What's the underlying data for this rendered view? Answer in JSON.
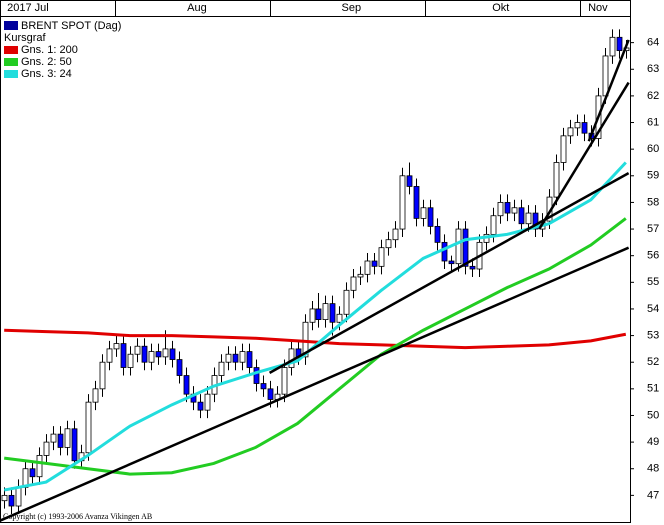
{
  "chart_data": {
    "type": "candlestick",
    "title": "BRENT SPOT (Dag)",
    "subtitle": "Kursgraf",
    "color": "#0000ff",
    "title_color": "#00009c",
    "annotation": "Copyright (c) 1993-2006 Avanza Vikingen AB",
    "xlim": [
      -0.6,
      89.6
    ],
    "xticks": [
      {
        "value": 3.4,
        "label": "2017 Jul"
      },
      {
        "value": 27.6,
        "label": "Aug"
      },
      {
        "value": 49.7,
        "label": "Sep"
      },
      {
        "value": 71.1,
        "label": "Okt"
      },
      {
        "value": 85,
        "label": "Nov"
      }
    ],
    "ylim": [
      46,
      65
    ],
    "yticks": [
      47,
      48,
      49,
      50,
      51,
      52,
      53,
      54,
      55,
      56,
      57,
      58,
      59,
      60,
      61,
      62,
      63,
      64
    ],
    "ohlc": [
      [
        46.8,
        47.3,
        46.5,
        47.0
      ],
      [
        47.0,
        47.3,
        46.3,
        46.6
      ],
      [
        46.6,
        47.6,
        46.3,
        47.3
      ],
      [
        47.3,
        48.3,
        47.0,
        48.0
      ],
      [
        48.0,
        48.3,
        47.4,
        47.7
      ],
      [
        47.7,
        48.8,
        47.4,
        48.5
      ],
      [
        48.5,
        49.3,
        48.2,
        49.0
      ],
      [
        49.0,
        49.6,
        48.7,
        49.3
      ],
      [
        49.3,
        49.6,
        48.5,
        48.8
      ],
      [
        48.8,
        49.8,
        48.5,
        49.5
      ],
      [
        49.5,
        49.8,
        48.0,
        48.3
      ],
      [
        48.3,
        48.9,
        48.0,
        48.6
      ],
      [
        48.6,
        50.8,
        48.3,
        50.5
      ],
      [
        50.5,
        51.3,
        50.2,
        51.0
      ],
      [
        51.0,
        52.3,
        50.7,
        52.0
      ],
      [
        52.0,
        52.8,
        51.7,
        52.5
      ],
      [
        52.5,
        53.0,
        52.2,
        52.7
      ],
      [
        52.7,
        53.0,
        51.5,
        51.8
      ],
      [
        51.8,
        52.6,
        51.5,
        52.3
      ],
      [
        52.3,
        52.9,
        52.0,
        52.6
      ],
      [
        52.6,
        52.9,
        51.7,
        52.0
      ],
      [
        52.0,
        52.7,
        51.7,
        52.4
      ],
      [
        52.4,
        52.7,
        51.9,
        52.2
      ],
      [
        52.2,
        53.2,
        51.9,
        52.5
      ],
      [
        52.5,
        52.8,
        51.8,
        52.1
      ],
      [
        52.1,
        52.4,
        51.2,
        51.5
      ],
      [
        51.5,
        51.8,
        50.5,
        50.8
      ],
      [
        50.8,
        51.1,
        50.2,
        50.5
      ],
      [
        50.5,
        50.8,
        49.9,
        50.2
      ],
      [
        50.2,
        51.1,
        49.9,
        50.8
      ],
      [
        50.8,
        51.8,
        50.5,
        51.5
      ],
      [
        51.5,
        52.3,
        51.2,
        52.0
      ],
      [
        52.0,
        52.6,
        51.7,
        52.3
      ],
      [
        52.3,
        52.6,
        51.7,
        52.0
      ],
      [
        52.0,
        52.7,
        51.7,
        52.4
      ],
      [
        52.4,
        52.7,
        51.5,
        51.8
      ],
      [
        51.8,
        52.1,
        50.9,
        51.2
      ],
      [
        51.2,
        51.5,
        50.7,
        51.0
      ],
      [
        51.0,
        51.3,
        50.3,
        50.6
      ],
      [
        50.6,
        51.1,
        50.3,
        50.8
      ],
      [
        50.8,
        52.1,
        50.5,
        51.8
      ],
      [
        51.8,
        52.8,
        51.5,
        52.5
      ],
      [
        52.5,
        52.8,
        51.9,
        52.2
      ],
      [
        52.2,
        53.8,
        51.9,
        53.5
      ],
      [
        53.5,
        54.3,
        53.2,
        54.0
      ],
      [
        54.0,
        54.6,
        53.3,
        53.6
      ],
      [
        53.6,
        54.5,
        53.3,
        54.2
      ],
      [
        54.2,
        54.5,
        53.0,
        53.5
      ],
      [
        53.5,
        54.1,
        53.2,
        53.8
      ],
      [
        53.8,
        55.0,
        53.5,
        54.7
      ],
      [
        54.7,
        55.5,
        54.4,
        55.2
      ],
      [
        55.2,
        55.6,
        54.9,
        55.3
      ],
      [
        55.3,
        56.1,
        55.0,
        55.8
      ],
      [
        55.8,
        56.1,
        55.3,
        55.6
      ],
      [
        55.6,
        56.6,
        55.3,
        56.3
      ],
      [
        56.3,
        56.9,
        56.0,
        56.6
      ],
      [
        56.6,
        57.3,
        56.3,
        57.0
      ],
      [
        57.0,
        59.3,
        56.7,
        59.0
      ],
      [
        59.0,
        59.5,
        58.3,
        58.6
      ],
      [
        58.6,
        58.9,
        57.1,
        57.4
      ],
      [
        57.4,
        58.1,
        57.1,
        57.8
      ],
      [
        57.8,
        58.1,
        56.8,
        57.1
      ],
      [
        57.1,
        57.4,
        56.2,
        56.5
      ],
      [
        56.5,
        56.8,
        55.5,
        55.8
      ],
      [
        55.8,
        56.0,
        55.4,
        55.7
      ],
      [
        55.7,
        57.3,
        55.4,
        57.0
      ],
      [
        57.0,
        57.3,
        55.3,
        55.6
      ],
      [
        55.6,
        55.9,
        55.2,
        55.5
      ],
      [
        55.5,
        56.8,
        55.2,
        56.5
      ],
      [
        56.5,
        57.1,
        56.2,
        56.8
      ],
      [
        56.8,
        57.8,
        56.5,
        57.5
      ],
      [
        57.5,
        58.3,
        57.2,
        58.0
      ],
      [
        58.0,
        58.3,
        57.3,
        57.6
      ],
      [
        57.6,
        58.1,
        57.3,
        57.8
      ],
      [
        57.8,
        58.1,
        56.9,
        57.2
      ],
      [
        57.2,
        57.9,
        56.9,
        57.6
      ],
      [
        57.6,
        57.9,
        56.7,
        57.0
      ],
      [
        57.0,
        57.6,
        56.7,
        57.3
      ],
      [
        57.3,
        58.5,
        57.0,
        58.2
      ],
      [
        58.2,
        59.8,
        57.9,
        59.5
      ],
      [
        59.5,
        60.8,
        59.2,
        60.5
      ],
      [
        60.5,
        61.1,
        60.2,
        60.8
      ],
      [
        60.8,
        61.3,
        60.5,
        61.0
      ],
      [
        61.0,
        61.3,
        60.3,
        60.6
      ],
      [
        60.6,
        60.9,
        60.1,
        60.4
      ],
      [
        60.4,
        62.3,
        60.1,
        62.0
      ],
      [
        62.0,
        63.8,
        61.7,
        63.5
      ],
      [
        63.5,
        64.5,
        63.2,
        64.2
      ],
      [
        64.2,
        64.5,
        63.4,
        63.7
      ],
      [
        63.7,
        64.1,
        63.4,
        63.8
      ]
    ],
    "series": [
      {
        "name": "Gns. 1: 200",
        "color": "#e00000",
        "x": [
          0,
          6,
          12,
          18,
          24,
          30,
          36,
          42,
          48,
          54,
          60,
          66,
          72,
          78,
          84,
          89
        ],
        "values": [
          53.2,
          53.15,
          53.1,
          53.0,
          53.0,
          52.95,
          52.9,
          52.8,
          52.7,
          52.65,
          52.6,
          52.55,
          52.6,
          52.65,
          52.8,
          53.05
        ]
      },
      {
        "name": "Gns. 2: 50",
        "color": "#22cc22",
        "x": [
          0,
          6,
          12,
          18,
          24,
          30,
          36,
          42,
          48,
          54,
          60,
          66,
          72,
          78,
          84,
          89
        ],
        "values": [
          48.4,
          48.2,
          48.0,
          47.8,
          47.85,
          48.2,
          48.8,
          49.7,
          51.0,
          52.3,
          53.2,
          54.0,
          54.8,
          55.5,
          56.4,
          57.4
        ]
      },
      {
        "name": "Gns. 3: 24",
        "color": "#22dddd",
        "x": [
          0,
          6,
          12,
          18,
          24,
          30,
          36,
          42,
          48,
          54,
          60,
          66,
          72,
          78,
          84,
          89
        ],
        "values": [
          47.2,
          47.5,
          48.5,
          49.6,
          50.4,
          51.1,
          51.6,
          52.05,
          53.4,
          54.7,
          55.9,
          56.6,
          56.8,
          57.2,
          58.1,
          59.5
        ]
      }
    ],
    "trendlines": [
      {
        "x": [
          -0.6,
          89.4
        ],
        "values": [
          46.05,
          56.3
        ]
      },
      {
        "x": [
          38,
          89.4
        ],
        "values": [
          51.6,
          59.1
        ]
      },
      {
        "x": [
          76.6,
          89.4
        ],
        "values": [
          57.0,
          62.5
        ]
      },
      {
        "x": [
          83.7,
          89.4
        ],
        "values": [
          60.3,
          64.1
        ]
      }
    ]
  }
}
